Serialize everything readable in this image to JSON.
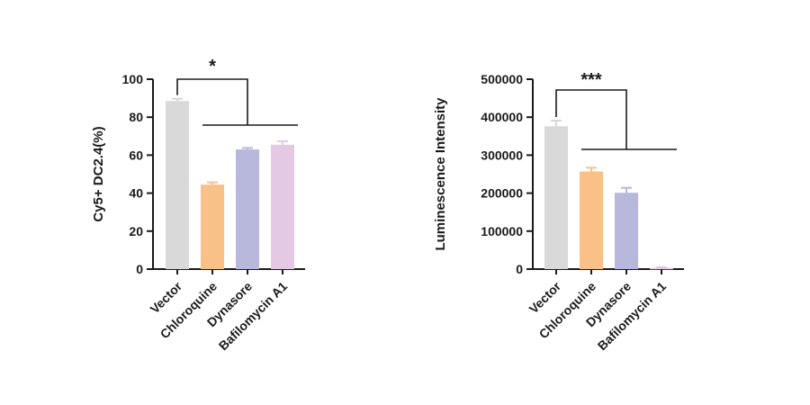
{
  "chart_data": [
    {
      "type": "bar",
      "categories": [
        "Vector",
        "Chloroquine",
        "Dynasore",
        "Bafilomycin A1"
      ],
      "values": [
        88.5,
        44.5,
        63,
        65.5
      ],
      "errors": [
        1.2,
        1.2,
        0.8,
        1.8
      ],
      "colors": [
        "#d9d9d9",
        "#f9c087",
        "#b8b7dc",
        "#e4c8e4"
      ],
      "ylabel": "Cy5+ DC2.4(%)",
      "ylim": [
        0,
        100
      ],
      "yticks": [
        0,
        20,
        40,
        60,
        80,
        100
      ],
      "ytick_labels": [
        "0",
        "20",
        "40",
        "60",
        "80",
        "100"
      ],
      "significance": "*",
      "significance_bracket": {
        "from": "Vector",
        "to": "Dynasore",
        "group_line_from": "Chloroquine",
        "group_line_to": "Bafilomycin A1"
      }
    },
    {
      "type": "bar",
      "categories": [
        "Vector",
        "Chloroquine",
        "Dynasore",
        "Bafilomycin A1"
      ],
      "values": [
        376000,
        257000,
        201000,
        3000
      ],
      "errors": [
        15000,
        10000,
        13000,
        2000
      ],
      "colors": [
        "#d9d9d9",
        "#f9c087",
        "#b8b7dc",
        "#e4c8e4"
      ],
      "ylabel": "Luminescence Intensity",
      "ylim": [
        0,
        500000
      ],
      "yticks": [
        0,
        100000,
        200000,
        300000,
        400000,
        500000
      ],
      "ytick_labels": [
        "0",
        "100000",
        "200000",
        "300000",
        "400000",
        "500000"
      ],
      "significance": "***",
      "significance_bracket": {
        "from": "Vector",
        "to": "Dynasore",
        "group_line_from": "Chloroquine",
        "group_line_to": "Bafilomycin A1"
      }
    }
  ]
}
